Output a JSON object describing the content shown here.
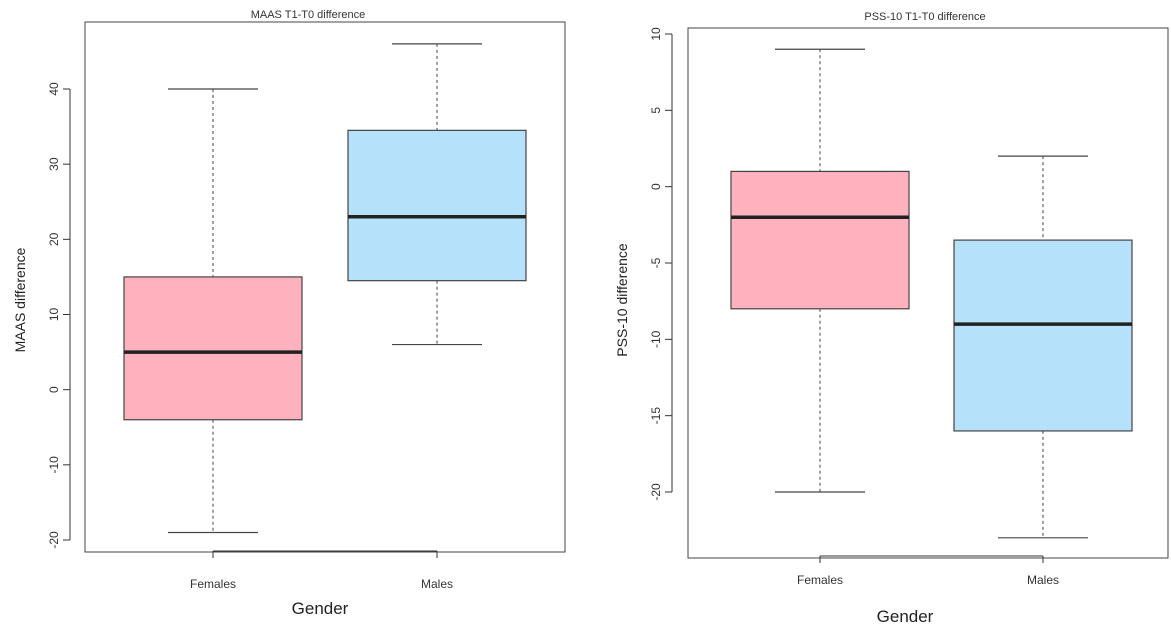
{
  "chart_data": [
    {
      "type": "boxplot",
      "title": "MAAS T1-T0 difference",
      "xlabel": "Gender",
      "ylabel": "MAAS difference",
      "categories": [
        "Females",
        "Males"
      ],
      "ylim": [
        -21,
        46
      ],
      "yticks": [
        -20,
        -10,
        0,
        10,
        20,
        30,
        40
      ],
      "colors": [
        "#ffb1bd",
        "#b6e1fb"
      ],
      "boxes": [
        {
          "name": "Females",
          "min": -19,
          "q1": -4,
          "median": 5,
          "q3": 15,
          "max": 40
        },
        {
          "name": "Males",
          "min": 6,
          "q1": 14.5,
          "median": 23,
          "q3": 34.5,
          "max": 46
        }
      ]
    },
    {
      "type": "boxplot",
      "title": "PSS-10 T1-T0 difference",
      "xlabel": "Gender",
      "ylabel": "PSS-10 difference",
      "categories": [
        "Females",
        "Males"
      ],
      "ylim": [
        -24,
        10
      ],
      "yticks": [
        -20,
        -15,
        -10,
        -5,
        0,
        5,
        10
      ],
      "colors": [
        "#ffb1bd",
        "#b6e1fb"
      ],
      "boxes": [
        {
          "name": "Females",
          "min": -20,
          "q1": -8,
          "median": -2,
          "q3": 1,
          "max": 9
        },
        {
          "name": "Males",
          "min": -23,
          "q1": -16,
          "median": -9,
          "q3": -3.5,
          "max": 2
        }
      ]
    }
  ]
}
